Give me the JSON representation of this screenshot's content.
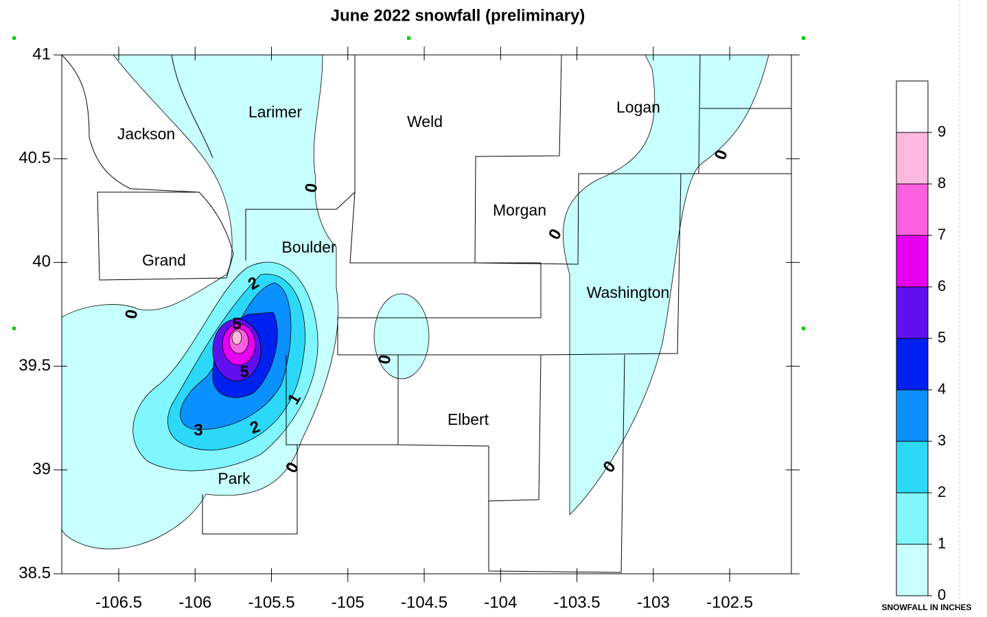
{
  "title": "June 2022 snowfall (preliminary)",
  "map": {
    "xlim": [
      -106.873,
      -102.096
    ],
    "ylim": [
      38.5,
      41
    ],
    "xticks": [
      -106.5,
      -106,
      -105.5,
      -105,
      -104.5,
      -104,
      -103.5,
      -103,
      -102.5
    ],
    "yticks": [
      38.5,
      39,
      39.5,
      40,
      40.5,
      41
    ],
    "counties": [
      "Jackson",
      "Larimer",
      "Weld",
      "Logan",
      "Morgan",
      "Boulder",
      "Grand",
      "Washington",
      "Elbert",
      "Park"
    ],
    "contour_labels": [
      0,
      0,
      0,
      0,
      0,
      0,
      0,
      1,
      2,
      2,
      3,
      5,
      5
    ]
  },
  "legend": {
    "title": "SNOWFALL IN INCHES",
    "levels": [
      0,
      1,
      2,
      3,
      4,
      5,
      6,
      7,
      8,
      9
    ],
    "colors": [
      "#c8ffff",
      "#80f6ff",
      "#2cd8f8",
      "#0a90ff",
      "#0020f0",
      "#6010f0",
      "#e800f0",
      "#ff60e0",
      "#ffb8e0",
      "#ffffff"
    ]
  }
}
